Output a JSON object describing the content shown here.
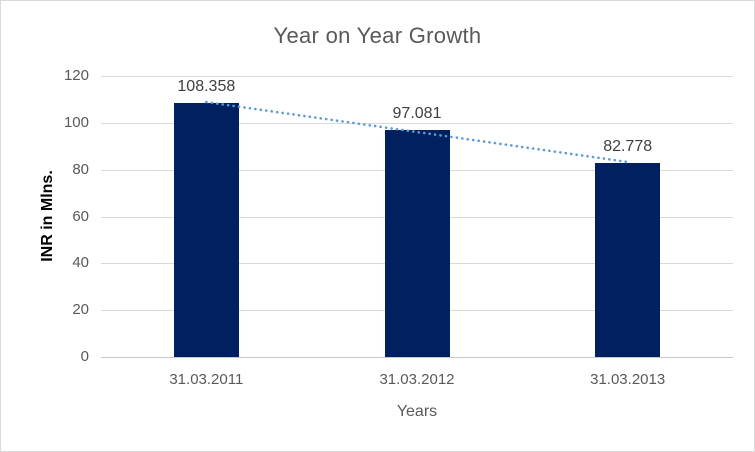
{
  "chart_data": {
    "type": "bar",
    "title": "Year on Year Growth",
    "xlabel": "Years",
    "ylabel": "INR in Mlns.",
    "categories": [
      "31.03.2011",
      "31.03.2012",
      "31.03.2013"
    ],
    "values": [
      108.358,
      97.081,
      82.778
    ],
    "data_labels": [
      "108.358",
      "97.081",
      "82.778"
    ],
    "ylim": [
      0,
      120
    ],
    "yticks": [
      0,
      20,
      40,
      60,
      80,
      100,
      120
    ],
    "grid": true,
    "legend": "none",
    "trendline": {
      "type": "linear",
      "style": "round-dot"
    },
    "colors": {
      "bar": "#002060",
      "trendline": "#5b9bd5",
      "gridline": "#d9d9d9",
      "axis_line": "#c6c6c6",
      "axis_text": "#595959",
      "title_text": "#595959",
      "data_label_text": "#404040",
      "y_axis_title_text": "#000000",
      "frame_border": "#d9d9d9",
      "background": "#ffffff"
    }
  }
}
